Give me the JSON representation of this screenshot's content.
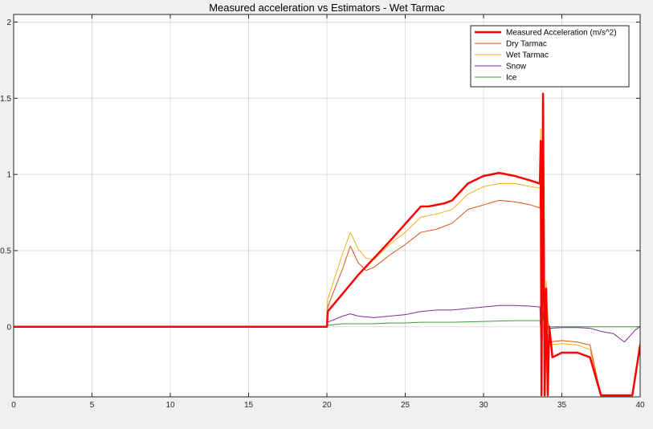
{
  "chart_data": {
    "type": "line",
    "title": "Measured acceleration vs Estimators - Wet Tarmac",
    "xlabel": "",
    "ylabel": "",
    "xlim": [
      0,
      40
    ],
    "ylim": [
      -0.46,
      2.05
    ],
    "xticks": [
      0,
      5,
      10,
      15,
      20,
      25,
      30,
      35,
      40
    ],
    "yticks": [
      0,
      0.5,
      1,
      1.5,
      2
    ],
    "ytick_labels": [
      "0",
      "0.5",
      "1",
      "1.5",
      "2"
    ],
    "grid": true,
    "legend_position": "top-right",
    "series": [
      {
        "name": "Measured Acceleration (m/s^2)",
        "color": "#ff0000",
        "linewidth": 2.5,
        "x": [
          0,
          20,
          20.05,
          22,
          24,
          26,
          26.5,
          27.5,
          28,
          29,
          30,
          31,
          32,
          33,
          33.6,
          33.65,
          33.7,
          33.8,
          33.9,
          34.0,
          34.1,
          34.2,
          34.4,
          35,
          36,
          36.8,
          37.5,
          38.5,
          39.5,
          40
        ],
        "y": [
          0,
          0,
          0.1,
          0.34,
          0.56,
          0.79,
          0.79,
          0.81,
          0.83,
          0.94,
          0.99,
          1.01,
          0.99,
          0.96,
          0.94,
          1.22,
          -0.45,
          1.53,
          -0.45,
          0.25,
          -0.45,
          0.0,
          -0.2,
          -0.17,
          -0.17,
          -0.2,
          -0.45,
          -0.45,
          -0.45,
          -0.12
        ]
      },
      {
        "name": "Dry Tarmac",
        "color": "#d95319",
        "linewidth": 1,
        "x": [
          0,
          20,
          20.05,
          21,
          21.5,
          22,
          22.5,
          23,
          24,
          25,
          26,
          27,
          28,
          29,
          30,
          31,
          32,
          33,
          33.6,
          33.65,
          33.7,
          33.8,
          33.9,
          34.0,
          34.2,
          35,
          36,
          36.8,
          37.5,
          38.5,
          39.5,
          40
        ],
        "y": [
          0,
          0,
          0.13,
          0.38,
          0.53,
          0.42,
          0.37,
          0.39,
          0.47,
          0.54,
          0.62,
          0.64,
          0.68,
          0.77,
          0.8,
          0.83,
          0.82,
          0.8,
          0.78,
          1.2,
          -0.45,
          1.48,
          -0.45,
          0.2,
          -0.1,
          -0.09,
          -0.1,
          -0.12,
          -0.45,
          -0.45,
          -0.45,
          -0.1
        ]
      },
      {
        "name": "Wet Tarmac",
        "color": "#edb120",
        "linewidth": 1,
        "x": [
          0,
          20,
          20.05,
          21,
          21.5,
          22,
          22.5,
          23,
          24,
          25,
          26,
          27,
          28,
          29,
          30,
          31,
          32,
          33,
          33.6,
          33.65,
          33.7,
          33.8,
          33.9,
          34.0,
          34.2,
          35,
          36,
          36.8,
          37.5,
          38.5,
          39.5,
          40
        ],
        "y": [
          0,
          0,
          0.18,
          0.48,
          0.62,
          0.51,
          0.45,
          0.44,
          0.54,
          0.62,
          0.72,
          0.74,
          0.77,
          0.87,
          0.92,
          0.94,
          0.94,
          0.92,
          0.91,
          1.3,
          -0.45,
          1.5,
          -0.45,
          0.3,
          -0.12,
          -0.11,
          -0.12,
          -0.15,
          -0.45,
          -0.45,
          -0.45,
          -0.14
        ]
      },
      {
        "name": "Snow",
        "color": "#7e2f8e",
        "linewidth": 1,
        "x": [
          0,
          20,
          20.05,
          21,
          21.5,
          22,
          23,
          24,
          25,
          26,
          27,
          28,
          29,
          30,
          31,
          32,
          33,
          33.6,
          33.7,
          33.8,
          33.9,
          34.0,
          34.2,
          35,
          36,
          36.8,
          37.5,
          38.3,
          39,
          39.7,
          40
        ],
        "y": [
          0,
          0,
          0.03,
          0.07,
          0.085,
          0.07,
          0.06,
          0.07,
          0.08,
          0.1,
          0.11,
          0.11,
          0.12,
          0.13,
          0.14,
          0.14,
          0.135,
          0.13,
          -0.2,
          0.3,
          -0.18,
          0.1,
          -0.01,
          -0.005,
          -0.005,
          -0.01,
          -0.03,
          -0.045,
          -0.1,
          -0.02,
          0
        ]
      },
      {
        "name": "Ice",
        "color": "#3c9a3c",
        "linewidth": 1,
        "x": [
          0,
          20,
          20.05,
          21,
          22,
          23,
          24,
          25,
          26,
          28,
          30,
          32,
          33.6,
          33.7,
          33.8,
          33.9,
          34.0,
          34.2,
          36,
          38,
          40
        ],
        "y": [
          0,
          0,
          0.01,
          0.02,
          0.02,
          0.02,
          0.025,
          0.025,
          0.03,
          0.03,
          0.035,
          0.04,
          0.04,
          -0.05,
          0.1,
          -0.06,
          0.05,
          0.0,
          0.0,
          0.0,
          0.0
        ]
      }
    ]
  }
}
